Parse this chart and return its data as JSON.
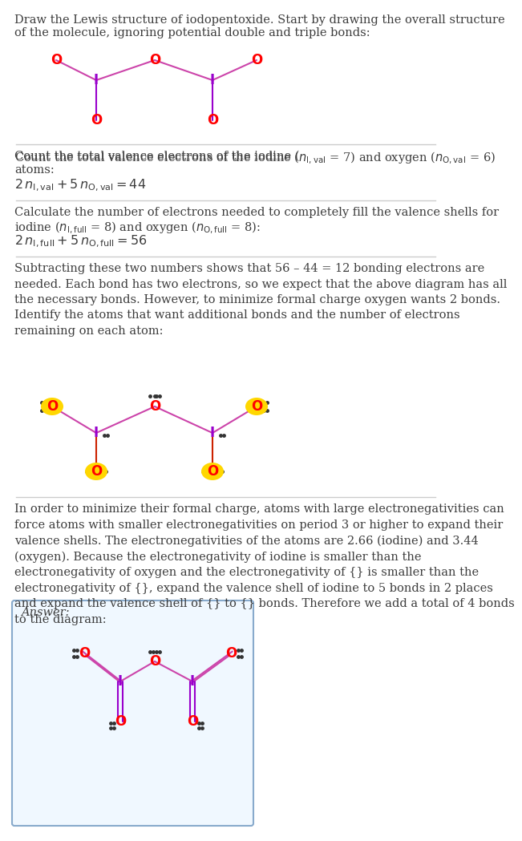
{
  "title_text": "Draw the Lewis structure of iodopentoxide. Start by drawing the overall structure\nof the molecule, ignoring potential double and triple bonds:",
  "section1_text": "Count the total valence electrons of the iodine ($n_{\\mathrm{I,val}}$ = 7) and oxygen ($n_{\\mathrm{O,val}}$ = 6)\natoms:",
  "section1_formula": "$2\\, n_{\\mathrm{I,val}} + 5\\, n_{\\mathrm{O,val}} = 44$",
  "section2_text": "Calculate the number of electrons needed to completely fill the valence shells for\niodine ($n_{\\mathrm{I,full}}$ = 8) and oxygen ($n_{\\mathrm{O,full}}$ = 8):",
  "section2_formula": "$2\\, n_{\\mathrm{I,full}} + 5\\, n_{\\mathrm{O,full}} = 56$",
  "section3_text": "Subtracting these two numbers shows that 56 – 44 = 12 bonding electrons are\nneeded. Each bond has two electrons, so we expect that the above diagram has all\nthe necessary bonds. However, to minimize formal charge oxygen wants 2 bonds.\nIdentify the atoms that want additional bonds and the number of electrons\nremaining on each atom:",
  "section4_text": "In order to minimize their formal charge, atoms with large electronegativities can\nforce atoms with smaller electronegativities on period 3 or higher to expand their\nvalence shells. The electronegativities of the atoms are 2.66 (iodine) and 3.44\n(oxygen). Because the electronegativity of iodine is smaller than the\nelectronegativity of oxygen and the electronegativity of {} is smaller than the\nelectronegativity of {}, expand the valence shell of iodine to 5 bonds in 2 places\nand expand the valence shell of {} to {} bonds. Therefore we add a total of 4 bonds\nto the diagram:",
  "answer_label": "Answer:",
  "bg_color": "#ffffff",
  "text_color": "#3d3d3d",
  "O_color": "#ff0000",
  "I_color": "#9900cc",
  "O_highlight_color": "#ffd700",
  "bond_color_pink": "#cc44aa",
  "bond_color_purple": "#9900cc",
  "bond_color_red": "#cc2200"
}
